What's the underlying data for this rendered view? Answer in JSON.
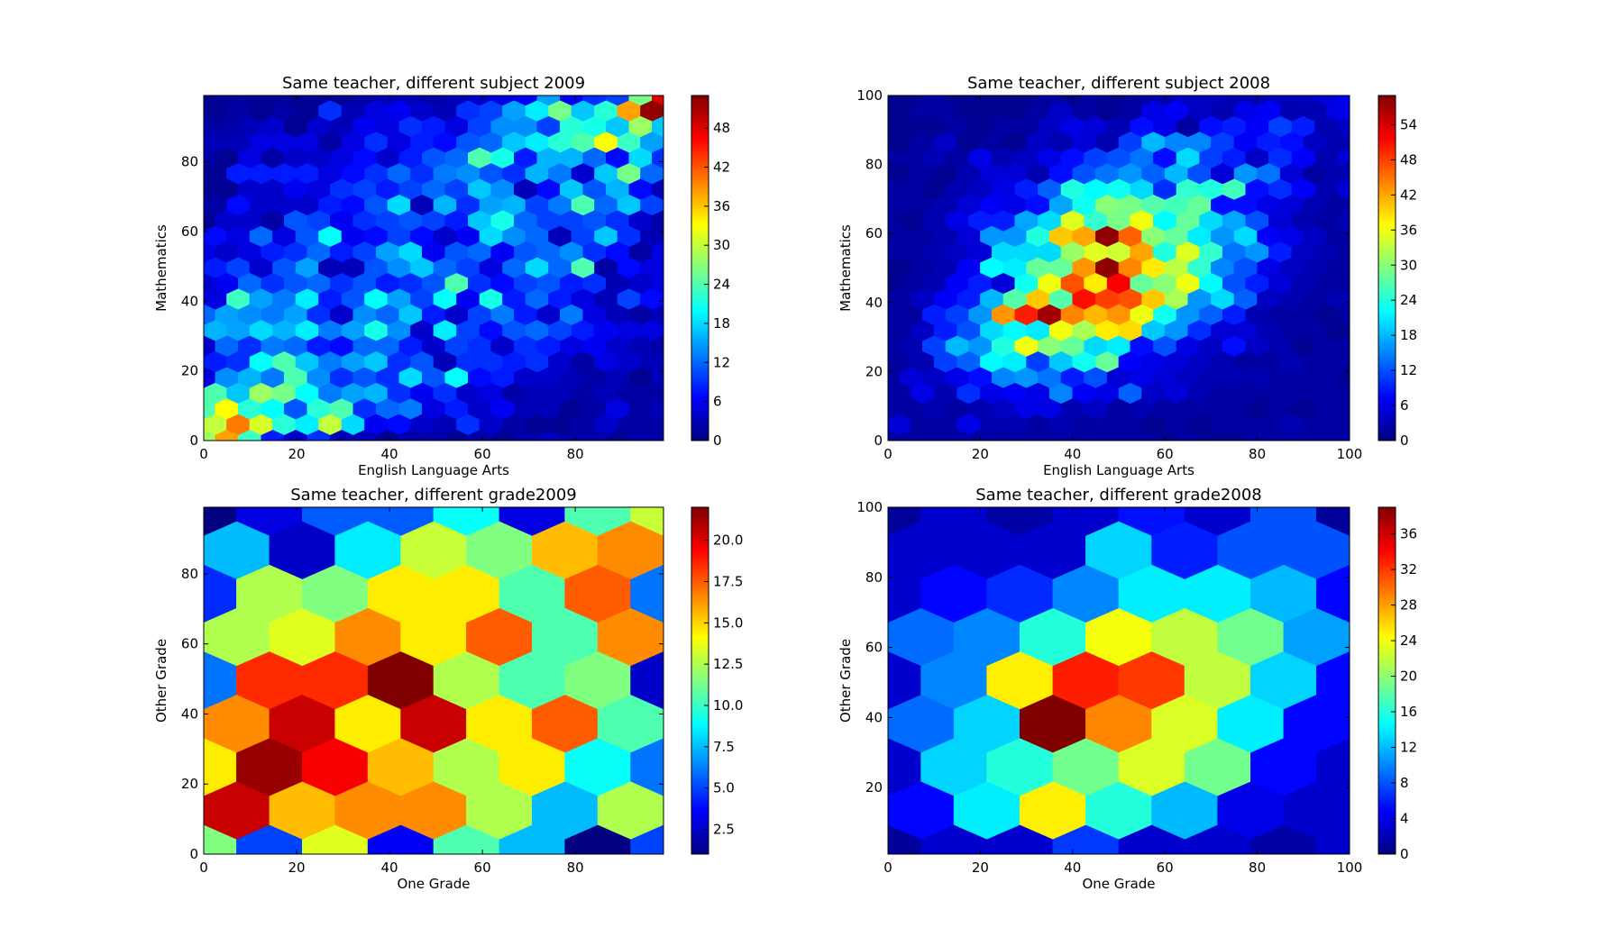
{
  "chart_data": [
    {
      "type": "heatmap",
      "subtype": "hexbin",
      "title": "Same teacher, different subject 2009",
      "xlabel": "English Language Arts",
      "ylabel": "Mathematics",
      "xlim": [
        0,
        99
      ],
      "ylim": [
        0,
        99
      ],
      "xticks": [
        0,
        20,
        40,
        60,
        80
      ],
      "yticks": [
        0,
        20,
        40,
        60,
        80
      ],
      "gridsize": [
        20,
        11
      ],
      "colormap": "jet",
      "clim": [
        0,
        53
      ],
      "colorbar_ticks": [
        "0",
        "6",
        "12",
        "18",
        "24",
        "30",
        "36",
        "42",
        "48"
      ],
      "colorbar_tick_values": [
        0,
        6,
        12,
        18,
        24,
        30,
        36,
        42,
        48
      ],
      "counts_rows_top_down": [
        [
          1,
          1,
          1,
          1,
          1,
          1,
          1,
          2,
          3,
          3,
          2,
          3,
          4,
          5,
          6,
          15,
          6,
          9,
          10,
          26,
          48
        ],
        [
          1,
          2,
          1,
          2,
          1,
          9,
          3,
          5,
          6,
          4,
          3,
          9,
          10,
          15,
          19,
          26,
          17,
          22,
          38,
          52
        ],
        [
          2,
          2,
          3,
          4,
          1,
          4,
          3,
          6,
          5,
          9,
          8,
          5,
          10,
          14,
          14,
          10,
          22,
          21,
          17,
          28,
          17
        ],
        [
          3,
          3,
          5,
          5,
          5,
          2,
          5,
          9,
          5,
          8,
          7,
          11,
          12,
          17,
          19,
          22,
          24,
          33,
          23,
          15
        ],
        [
          2,
          1,
          5,
          2,
          4,
          4,
          5,
          7,
          4,
          8,
          11,
          12,
          24,
          21,
          8,
          16,
          16,
          12,
          7,
          18,
          9
        ],
        [
          1,
          8,
          8,
          8,
          8,
          5,
          7,
          9,
          12,
          9,
          13,
          14,
          11,
          9,
          16,
          13,
          4,
          17,
          26,
          12
        ],
        [
          1,
          1,
          4,
          4,
          6,
          5,
          9,
          10,
          8,
          10,
          12,
          10,
          17,
          14,
          3,
          7,
          17,
          11,
          16,
          7,
          3
        ],
        [
          2,
          7,
          4,
          4,
          4,
          8,
          7,
          11,
          18,
          3,
          16,
          9,
          15,
          16,
          10,
          13,
          24,
          12,
          17,
          10
        ],
        [
          1,
          4,
          4,
          2,
          11,
          10,
          6,
          9,
          10,
          11,
          10,
          8,
          17,
          21,
          12,
          10,
          10,
          11,
          9,
          4,
          2
        ],
        [
          7,
          5,
          12,
          5,
          11,
          20,
          6,
          7,
          10,
          7,
          4,
          6,
          18,
          14,
          12,
          3,
          10,
          17,
          9,
          3
        ],
        [
          5,
          4,
          5,
          8,
          9,
          12,
          8,
          10,
          15,
          18,
          6,
          11,
          12,
          6,
          11,
          12,
          14,
          9,
          7,
          2,
          5
        ],
        [
          8,
          10,
          4,
          11,
          15,
          3,
          3,
          11,
          14,
          17,
          12,
          10,
          5,
          12,
          18,
          12,
          24,
          2,
          7,
          5
        ],
        [
          4,
          6,
          12,
          9,
          11,
          12,
          9,
          11,
          8,
          9,
          11,
          24,
          9,
          7,
          10,
          11,
          8,
          9,
          3,
          4,
          5
        ],
        [
          5,
          23,
          15,
          13,
          19,
          8,
          11,
          20,
          15,
          10,
          20,
          6,
          21,
          8,
          12,
          8,
          5,
          3,
          10,
          7
        ],
        [
          12,
          15,
          14,
          13,
          15,
          9,
          4,
          14,
          12,
          17,
          8,
          4,
          10,
          13,
          8,
          4,
          13,
          5,
          3,
          2,
          3
        ],
        [
          16,
          15,
          18,
          16,
          19,
          13,
          15,
          21,
          14,
          4,
          19,
          10,
          7,
          11,
          12,
          10,
          8,
          6,
          5,
          5
        ],
        [
          4,
          12,
          9,
          13,
          12,
          8,
          7,
          12,
          12,
          8,
          4,
          10,
          9,
          4,
          9,
          8,
          5,
          6,
          4,
          3,
          2
        ],
        [
          8,
          9,
          20,
          24,
          17,
          13,
          15,
          17,
          9,
          11,
          3,
          9,
          9,
          8,
          9,
          4,
          2,
          5,
          4,
          3
        ],
        [
          5,
          14,
          16,
          13,
          24,
          14,
          9,
          11,
          9,
          18,
          11,
          20,
          7,
          8,
          4,
          4,
          3,
          2,
          3,
          1,
          3
        ],
        [
          24,
          17,
          28,
          26,
          20,
          13,
          15,
          16,
          9,
          6,
          9,
          4,
          5,
          2,
          3,
          3,
          2,
          3,
          2,
          2
        ],
        [
          24,
          33,
          22,
          20,
          11,
          22,
          24,
          9,
          12,
          13,
          5,
          8,
          4,
          6,
          3,
          3,
          1,
          2,
          5,
          2,
          3
        ],
        [
          30,
          40,
          31,
          22,
          19,
          30,
          18,
          6,
          7,
          4,
          3,
          9,
          4,
          2,
          1,
          1,
          2,
          4,
          2,
          2
        ],
        [
          28,
          38,
          23,
          8,
          4,
          9,
          3,
          3,
          1,
          2,
          2,
          1,
          2,
          1,
          2,
          3,
          2,
          2,
          1,
          2,
          2
        ]
      ]
    },
    {
      "type": "heatmap",
      "subtype": "hexbin",
      "title": "Same teacher, different subject 2008",
      "xlabel": "English Language Arts",
      "ylabel": "Mathematics",
      "xlim": [
        0,
        100
      ],
      "ylim": [
        0,
        100
      ],
      "xticks": [
        0,
        20,
        40,
        60,
        80,
        100
      ],
      "yticks": [
        0,
        20,
        40,
        60,
        80,
        100
      ],
      "gridsize": [
        20,
        11
      ],
      "colormap": "jet",
      "clim": [
        0,
        59
      ],
      "colorbar_ticks": [
        "0",
        "6",
        "12",
        "18",
        "24",
        "30",
        "36",
        "42",
        "48",
        "54"
      ],
      "colorbar_tick_values": [
        0,
        6,
        12,
        18,
        24,
        30,
        36,
        42,
        48,
        54
      ],
      "counts_rows_top_down": [
        [
          1,
          1,
          2,
          1,
          1,
          1,
          1,
          2,
          1,
          2,
          1,
          2,
          3,
          4,
          4,
          3,
          3,
          4,
          4,
          5,
          7
        ],
        [
          1,
          2,
          2,
          1,
          1,
          1,
          2,
          4,
          2,
          1,
          2,
          6,
          7,
          4,
          3,
          6,
          7,
          3,
          3,
          6
        ],
        [
          1,
          1,
          1,
          2,
          1,
          2,
          2,
          4,
          6,
          5,
          3,
          8,
          6,
          2,
          8,
          9,
          7,
          11,
          9,
          3,
          4
        ],
        [
          1,
          2,
          4,
          1,
          2,
          1,
          4,
          3,
          5,
          3,
          11,
          18,
          15,
          15,
          11,
          7,
          9,
          8,
          4,
          3
        ],
        [
          2,
          2,
          3,
          2,
          6,
          3,
          4,
          6,
          8,
          11,
          12,
          14,
          8,
          20,
          11,
          9,
          4,
          10,
          7,
          3,
          5
        ],
        [
          1,
          2,
          1,
          3,
          5,
          5,
          3,
          8,
          12,
          14,
          16,
          13,
          18,
          12,
          5,
          16,
          14,
          5,
          2,
          3
        ],
        [
          2,
          2,
          1,
          3,
          4,
          6,
          9,
          13,
          24,
          22,
          23,
          20,
          10,
          25,
          24,
          26,
          8,
          10,
          7,
          3,
          5
        ],
        [
          2,
          2,
          3,
          5,
          7,
          6,
          8,
          17,
          23,
          30,
          29,
          27,
          26,
          28,
          8,
          8,
          6,
          5,
          3,
          2
        ],
        [
          2,
          1,
          3,
          6,
          9,
          9,
          17,
          20,
          35,
          25,
          29,
          36,
          22,
          28,
          20,
          17,
          12,
          5,
          3,
          2,
          3
        ],
        [
          2,
          2,
          3,
          5,
          16,
          16,
          24,
          40,
          42,
          58,
          46,
          30,
          28,
          21,
          16,
          20,
          7,
          6,
          4,
          2
        ],
        [
          2,
          2,
          3,
          4,
          5,
          20,
          20,
          20,
          31,
          35,
          34,
          42,
          24,
          35,
          25,
          14,
          16,
          9,
          4,
          3,
          2
        ],
        [
          1,
          2,
          3,
          7,
          22,
          21,
          28,
          28,
          43,
          58,
          44,
          38,
          33,
          25,
          15,
          12,
          6,
          4,
          3,
          2
        ],
        [
          1,
          2,
          3,
          7,
          9,
          5,
          23,
          36,
          47,
          38,
          52,
          28,
          30,
          36,
          22,
          12,
          9,
          5,
          3,
          2,
          2
        ],
        [
          2,
          4,
          7,
          9,
          18,
          27,
          40,
          27,
          51,
          48,
          47,
          40,
          32,
          16,
          20,
          13,
          4,
          3,
          2,
          3
        ],
        [
          2,
          2,
          9,
          11,
          16,
          43,
          50,
          57,
          44,
          41,
          43,
          36,
          23,
          16,
          13,
          9,
          3,
          2,
          2,
          1,
          2
        ],
        [
          2,
          4,
          9,
          12,
          20,
          22,
          21,
          36,
          32,
          38,
          39,
          19,
          16,
          10,
          5,
          5,
          3,
          2,
          2,
          1
        ],
        [
          2,
          3,
          11,
          18,
          16,
          24,
          36,
          30,
          28,
          20,
          21,
          8,
          12,
          6,
          4,
          8,
          4,
          3,
          1,
          2,
          2
        ],
        [
          2,
          3,
          11,
          13,
          22,
          21,
          11,
          19,
          23,
          28,
          7,
          6,
          5,
          4,
          3,
          2,
          2,
          3,
          2,
          2
        ],
        [
          2,
          5,
          4,
          6,
          8,
          15,
          16,
          14,
          9,
          12,
          5,
          6,
          5,
          4,
          3,
          3,
          3,
          2,
          2,
          2,
          1
        ],
        [
          2,
          6,
          3,
          10,
          6,
          7,
          6,
          15,
          7,
          6,
          13,
          4,
          5,
          3,
          2,
          2,
          2,
          2,
          2,
          2
        ],
        [
          2,
          2,
          3,
          2,
          3,
          4,
          6,
          6,
          3,
          4,
          2,
          3,
          2,
          2,
          2,
          2,
          1,
          2,
          1,
          2,
          2
        ],
        [
          5,
          2,
          2,
          6,
          3,
          3,
          2,
          3,
          2,
          2,
          2,
          1,
          2,
          1,
          2,
          2,
          2,
          3,
          2,
          2
        ],
        [
          2,
          2,
          2,
          2,
          2,
          2,
          2,
          2,
          2,
          2,
          2,
          2,
          1,
          2,
          1,
          1,
          2,
          2,
          2,
          2,
          2
        ]
      ]
    },
    {
      "type": "heatmap",
      "subtype": "hexbin",
      "title": "Same teacher, different grade2009",
      "xlabel": "One Grade",
      "ylabel": "Other Grade",
      "xlim": [
        0,
        99
      ],
      "ylim": [
        0,
        99
      ],
      "xticks": [
        0,
        20,
        40,
        60,
        80
      ],
      "yticks": [
        0,
        20,
        40,
        60,
        80
      ],
      "gridsize": [
        7,
        4
      ],
      "colormap": "jet",
      "clim": [
        1,
        22
      ],
      "colorbar_ticks": [
        "2.5",
        "5.0",
        "7.5",
        "10.0",
        "12.5",
        "15.0",
        "17.5",
        "20.0"
      ],
      "colorbar_tick_values": [
        2.5,
        5.0,
        7.5,
        10.0,
        12.5,
        15.0,
        17.5,
        20.0
      ],
      "counts_rows_top_down": [
        [
          1,
          3,
          5.5,
          5.5,
          9,
          3,
          10.5,
          13
        ],
        [
          7.5,
          2.5,
          8.5,
          13,
          11.5,
          15.5,
          16.5
        ],
        [
          4.5,
          12.5,
          11.5,
          14.5,
          14.5,
          10.5,
          17.5,
          6
        ],
        [
          12.5,
          13.5,
          16.5,
          14.5,
          17.5,
          10.5,
          16.5
        ],
        [
          6,
          18.5,
          18.5,
          22,
          12.5,
          10.5,
          11.5,
          2.5
        ],
        [
          16.5,
          20.5,
          14.5,
          20.5,
          14.5,
          17.5,
          10.5
        ],
        [
          14.5,
          21.5,
          19.5,
          15.5,
          12.5,
          14.5,
          9,
          6
        ],
        [
          20.5,
          15.5,
          16.5,
          16.5,
          12.5,
          7.5,
          12.5
        ],
        [
          11.5,
          5,
          13.5,
          3.5,
          10.5,
          7.5,
          1,
          5
        ]
      ]
    },
    {
      "type": "heatmap",
      "subtype": "hexbin",
      "title": "Same teacher, different grade2008",
      "xlabel": "One Grade",
      "ylabel": "Other Grade",
      "xlim": [
        0,
        100
      ],
      "ylim": [
        1,
        100
      ],
      "xticks": [
        0,
        20,
        40,
        60,
        80,
        100
      ],
      "yticks": [
        20,
        40,
        60,
        80,
        100
      ],
      "gridsize": [
        7,
        4
      ],
      "colormap": "jet",
      "clim": [
        0,
        39
      ],
      "colorbar_ticks": [
        "0",
        "4",
        "8",
        "12",
        "16",
        "20",
        "24",
        "28",
        "32",
        "36"
      ],
      "colorbar_tick_values": [
        0,
        4,
        8,
        12,
        16,
        20,
        24,
        28,
        32,
        36
      ],
      "counts_rows_top_down": [
        [
          1,
          3,
          1.5,
          3,
          5.5,
          3,
          8,
          1
        ],
        [
          3,
          3,
          3,
          13,
          6,
          8,
          8
        ],
        [
          3,
          5,
          6.5,
          10,
          14,
          14,
          12,
          5
        ],
        [
          9,
          10,
          16,
          24,
          22,
          19,
          11
        ],
        [
          3,
          10,
          25,
          33,
          32,
          22,
          13,
          5
        ],
        [
          9,
          13,
          39,
          29,
          23,
          14,
          5
        ],
        [
          3,
          13,
          16,
          19,
          23,
          19,
          5,
          3
        ],
        [
          5,
          14,
          25,
          16,
          12,
          4,
          3
        ],
        [
          1,
          3,
          3,
          7,
          3,
          3,
          1.5,
          3
        ]
      ]
    }
  ]
}
